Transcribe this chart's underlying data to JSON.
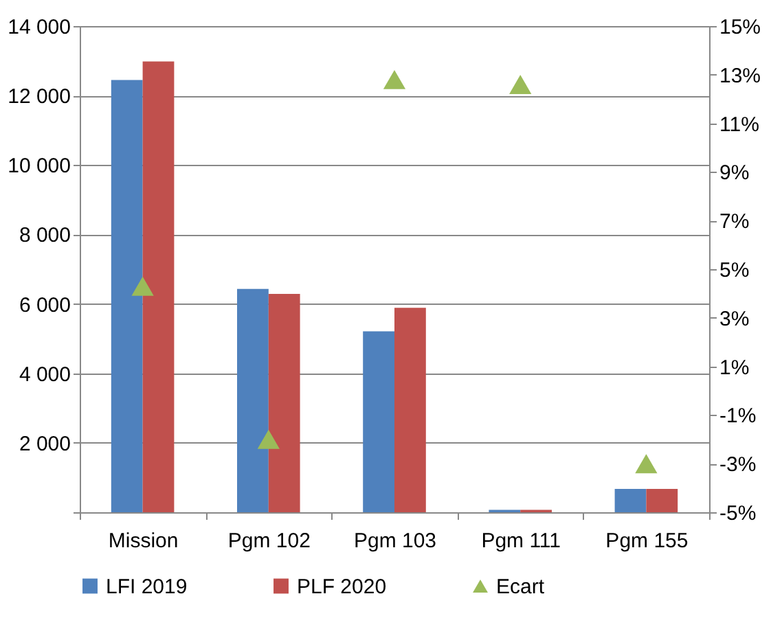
{
  "chart_data": {
    "type": "bar",
    "categories": [
      "Mission",
      "Pgm 102",
      "Pgm 103",
      "Pgm 111",
      "Pgm 155"
    ],
    "series": [
      {
        "name": "LFI 2019",
        "color": "#4f81bd",
        "values": [
          12450,
          6430,
          5210,
          70,
          670
        ]
      },
      {
        "name": "PLF 2020",
        "color": "#c0504d",
        "values": [
          12980,
          6290,
          5890,
          70,
          670
        ]
      },
      {
        "name": "Ecart",
        "type": "scatter",
        "axis": "y2",
        "marker": "triangle",
        "color": "#9bbb59",
        "values": [
          4.3,
          -2.0,
          12.8,
          12.6,
          -3.0
        ]
      }
    ],
    "ylim": [
      0,
      14000
    ],
    "yticks": [
      {
        "value": 0,
        "label": null
      },
      {
        "value": 2000,
        "label": "2 000"
      },
      {
        "value": 4000,
        "label": "4 000"
      },
      {
        "value": 6000,
        "label": "6 000"
      },
      {
        "value": 8000,
        "label": "8 000"
      },
      {
        "value": 10000,
        "label": "10 000"
      },
      {
        "value": 12000,
        "label": "12 000"
      },
      {
        "value": 14000,
        "label": "14 000"
      }
    ],
    "y2lim": [
      -5,
      15
    ],
    "y2ticks": [
      {
        "value": -5,
        "label": "-5%"
      },
      {
        "value": -3,
        "label": "-3%"
      },
      {
        "value": -1,
        "label": "-1%"
      },
      {
        "value": 1,
        "label": "1%"
      },
      {
        "value": 3,
        "label": "3%"
      },
      {
        "value": 5,
        "label": "5%"
      },
      {
        "value": 7,
        "label": "7%"
      },
      {
        "value": 9,
        "label": "9%"
      },
      {
        "value": 11,
        "label": "11%"
      },
      {
        "value": 13,
        "label": "13%"
      },
      {
        "value": 15,
        "label": "15%"
      }
    ],
    "grid": "y",
    "legend": "bottom"
  }
}
